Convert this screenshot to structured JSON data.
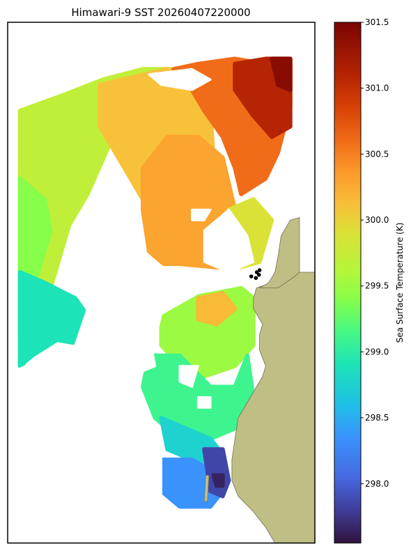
{
  "chart_data": {
    "type": "heatmap",
    "title": "Himawari-9 SST 20260407220000",
    "colorbar": {
      "label": "Sea Surface Temperature (K)",
      "range": [
        297.55,
        301.5
      ],
      "ticks": [
        "298.0",
        "298.5",
        "299.0",
        "299.5",
        "300.0",
        "300.5",
        "301.0",
        "301.5"
      ],
      "colormap": "turbo",
      "stops": [
        {
          "v": 297.55,
          "c": "#30123b"
        },
        {
          "v": 297.8,
          "c": "#3f3d9a"
        },
        {
          "v": 298.05,
          "c": "#4669e0"
        },
        {
          "v": 298.35,
          "c": "#3a92fd"
        },
        {
          "v": 298.6,
          "c": "#1fc0e6"
        },
        {
          "v": 298.9,
          "c": "#1ce3b8"
        },
        {
          "v": 299.15,
          "c": "#46f884"
        },
        {
          "v": 299.4,
          "c": "#86fe4a"
        },
        {
          "v": 299.6,
          "c": "#b2f63a"
        },
        {
          "v": 299.9,
          "c": "#dae237"
        },
        {
          "v": 300.1,
          "c": "#f7c23a"
        },
        {
          "v": 300.35,
          "c": "#fc9c2c"
        },
        {
          "v": 300.6,
          "c": "#f06c18"
        },
        {
          "v": 300.85,
          "c": "#d84207"
        },
        {
          "v": 301.1,
          "c": "#b52403"
        },
        {
          "v": 301.5,
          "c": "#7a0403"
        }
      ]
    },
    "land_color": "#bfbe84",
    "regions": [
      {
        "v": 299.7,
        "pts": [
          [
            0.04,
            0.17
          ],
          [
            0.18,
            0.14
          ],
          [
            0.31,
            0.11
          ],
          [
            0.44,
            0.09
          ],
          [
            0.54,
            0.09
          ],
          [
            0.52,
            0.11
          ],
          [
            0.44,
            0.13
          ],
          [
            0.38,
            0.17
          ],
          [
            0.32,
            0.25
          ],
          [
            0.26,
            0.33
          ],
          [
            0.2,
            0.39
          ],
          [
            0.16,
            0.47
          ],
          [
            0.12,
            0.55
          ],
          [
            0.05,
            0.66
          ],
          [
            0.04,
            0.6
          ]
        ]
      },
      {
        "v": 299.4,
        "pts": [
          [
            0.04,
            0.3
          ],
          [
            0.12,
            0.34
          ],
          [
            0.14,
            0.4
          ],
          [
            0.1,
            0.48
          ],
          [
            0.04,
            0.55
          ]
        ]
      },
      {
        "v": 298.9,
        "pts": [
          [
            0.04,
            0.48
          ],
          [
            0.12,
            0.5
          ],
          [
            0.22,
            0.53
          ],
          [
            0.28,
            0.58
          ],
          [
            0.26,
            0.62
          ],
          [
            0.16,
            0.61
          ],
          [
            0.08,
            0.64
          ],
          [
            0.04,
            0.66
          ]
        ]
      },
      {
        "v": 300.1,
        "pts": [
          [
            0.3,
            0.12
          ],
          [
            0.52,
            0.09
          ],
          [
            0.62,
            0.11
          ],
          [
            0.66,
            0.17
          ],
          [
            0.67,
            0.26
          ],
          [
            0.6,
            0.3
          ],
          [
            0.5,
            0.36
          ],
          [
            0.44,
            0.34
          ],
          [
            0.36,
            0.26
          ],
          [
            0.3,
            0.2
          ]
        ]
      },
      {
        "v": 300.3,
        "pts": [
          [
            0.44,
            0.28
          ],
          [
            0.52,
            0.22
          ],
          [
            0.62,
            0.22
          ],
          [
            0.7,
            0.26
          ],
          [
            0.74,
            0.36
          ],
          [
            0.78,
            0.44
          ],
          [
            0.72,
            0.47
          ],
          [
            0.62,
            0.49
          ],
          [
            0.54,
            0.48
          ],
          [
            0.46,
            0.44
          ],
          [
            0.44,
            0.36
          ]
        ]
      },
      {
        "v": 300.6,
        "pts": [
          [
            0.54,
            0.09
          ],
          [
            0.62,
            0.08
          ],
          [
            0.74,
            0.07
          ],
          [
            0.84,
            0.08
          ],
          [
            0.92,
            0.08
          ],
          [
            0.92,
            0.16
          ],
          [
            0.88,
            0.25
          ],
          [
            0.84,
            0.3
          ],
          [
            0.76,
            0.33
          ],
          [
            0.74,
            0.28
          ],
          [
            0.7,
            0.22
          ],
          [
            0.64,
            0.17
          ],
          [
            0.6,
            0.13
          ]
        ]
      },
      {
        "v": 301.1,
        "pts": [
          [
            0.74,
            0.08
          ],
          [
            0.84,
            0.07
          ],
          [
            0.92,
            0.07
          ],
          [
            0.92,
            0.2
          ],
          [
            0.86,
            0.22
          ],
          [
            0.8,
            0.18
          ],
          [
            0.74,
            0.13
          ]
        ]
      },
      {
        "v": 301.4,
        "pts": [
          [
            0.86,
            0.07
          ],
          [
            0.92,
            0.07
          ],
          [
            0.92,
            0.13
          ],
          [
            0.88,
            0.12
          ]
        ]
      },
      {
        "v": 299.9,
        "pts": [
          [
            0.72,
            0.36
          ],
          [
            0.8,
            0.34
          ],
          [
            0.86,
            0.38
          ],
          [
            0.82,
            0.46
          ],
          [
            0.76,
            0.47
          ],
          [
            0.72,
            0.43
          ]
        ]
      },
      {
        "v": 299.5,
        "pts": [
          [
            0.5,
            0.56
          ],
          [
            0.62,
            0.52
          ],
          [
            0.74,
            0.5
          ],
          [
            0.8,
            0.53
          ],
          [
            0.8,
            0.62
          ],
          [
            0.74,
            0.66
          ],
          [
            0.64,
            0.68
          ],
          [
            0.56,
            0.66
          ],
          [
            0.5,
            0.62
          ]
        ]
      },
      {
        "v": 299.1,
        "pts": [
          [
            0.46,
            0.64
          ],
          [
            0.56,
            0.64
          ],
          [
            0.66,
            0.7
          ],
          [
            0.74,
            0.7
          ],
          [
            0.78,
            0.64
          ],
          [
            0.8,
            0.72
          ],
          [
            0.74,
            0.78
          ],
          [
            0.66,
            0.8
          ],
          [
            0.56,
            0.8
          ],
          [
            0.48,
            0.76
          ],
          [
            0.44,
            0.7
          ]
        ]
      },
      {
        "v": 300.15,
        "pts": [
          [
            0.62,
            0.53
          ],
          [
            0.7,
            0.52
          ],
          [
            0.74,
            0.55
          ],
          [
            0.68,
            0.58
          ],
          [
            0.62,
            0.57
          ]
        ]
      },
      {
        "v": 298.75,
        "pts": [
          [
            0.5,
            0.76
          ],
          [
            0.58,
            0.78
          ],
          [
            0.66,
            0.8
          ],
          [
            0.7,
            0.83
          ],
          [
            0.66,
            0.86
          ],
          [
            0.6,
            0.84
          ],
          [
            0.52,
            0.82
          ]
        ]
      },
      {
        "v": 298.35,
        "pts": [
          [
            0.5,
            0.84
          ],
          [
            0.6,
            0.84
          ],
          [
            0.66,
            0.86
          ],
          [
            0.7,
            0.9
          ],
          [
            0.66,
            0.93
          ],
          [
            0.56,
            0.93
          ],
          [
            0.5,
            0.9
          ]
        ]
      },
      {
        "v": 297.85,
        "pts": [
          [
            0.64,
            0.82
          ],
          [
            0.7,
            0.82
          ],
          [
            0.72,
            0.88
          ],
          [
            0.7,
            0.91
          ],
          [
            0.66,
            0.9
          ]
        ]
      },
      {
        "v": 297.65,
        "pts": [
          [
            0.67,
            0.87
          ],
          [
            0.7,
            0.87
          ],
          [
            0.7,
            0.89
          ],
          [
            0.68,
            0.89
          ]
        ]
      }
    ],
    "gaps": [
      [
        [
          0.3,
          0.3
        ],
        [
          0.34,
          0.3
        ],
        [
          0.36,
          0.32
        ],
        [
          0.32,
          0.33
        ],
        [
          0.3,
          0.32
        ]
      ],
      [
        [
          0.46,
          0.1
        ],
        [
          0.6,
          0.09
        ],
        [
          0.66,
          0.11
        ],
        [
          0.6,
          0.13
        ],
        [
          0.5,
          0.12
        ]
      ],
      [
        [
          0.6,
          0.36
        ],
        [
          0.66,
          0.36
        ],
        [
          0.64,
          0.38
        ],
        [
          0.6,
          0.38
        ]
      ],
      [
        [
          0.04,
          0.08
        ],
        [
          0.56,
          0.07
        ],
        [
          0.5,
          0.08
        ],
        [
          0.2,
          0.1
        ],
        [
          0.04,
          0.15
        ]
      ],
      [
        [
          0.26,
          0.47
        ],
        [
          0.56,
          0.47
        ],
        [
          0.74,
          0.48
        ],
        [
          0.8,
          0.5
        ],
        [
          0.62,
          0.52
        ],
        [
          0.5,
          0.56
        ],
        [
          0.46,
          0.66
        ],
        [
          0.34,
          0.64
        ],
        [
          0.22,
          0.62
        ],
        [
          0.26,
          0.55
        ],
        [
          0.3,
          0.5
        ]
      ],
      [
        [
          0.64,
          0.4
        ],
        [
          0.72,
          0.36
        ],
        [
          0.78,
          0.41
        ],
        [
          0.8,
          0.46
        ],
        [
          0.72,
          0.48
        ],
        [
          0.64,
          0.46
        ]
      ],
      [
        [
          0.06,
          0.66
        ],
        [
          0.2,
          0.62
        ],
        [
          0.3,
          0.66
        ],
        [
          0.4,
          0.7
        ],
        [
          0.46,
          0.76
        ],
        [
          0.5,
          0.82
        ],
        [
          0.5,
          0.93
        ],
        [
          0.02,
          0.93
        ],
        [
          0.02,
          0.67
        ]
      ],
      [
        [
          0.36,
          0.6
        ],
        [
          0.46,
          0.6
        ],
        [
          0.48,
          0.66
        ],
        [
          0.4,
          0.68
        ],
        [
          0.34,
          0.66
        ]
      ],
      [
        [
          0.62,
          0.72
        ],
        [
          0.66,
          0.72
        ],
        [
          0.66,
          0.74
        ],
        [
          0.62,
          0.74
        ]
      ],
      [
        [
          0.56,
          0.66
        ],
        [
          0.62,
          0.66
        ],
        [
          0.6,
          0.7
        ],
        [
          0.56,
          0.69
        ]
      ]
    ],
    "land": [
      [
        0.87,
        1.0
      ],
      [
        0.84,
        0.97
      ],
      [
        0.8,
        0.94
      ],
      [
        0.75,
        0.91
      ],
      [
        0.73,
        0.88
      ],
      [
        0.73,
        0.84
      ],
      [
        0.74,
        0.8
      ],
      [
        0.75,
        0.76
      ],
      [
        0.78,
        0.73
      ],
      [
        0.8,
        0.71
      ],
      [
        0.83,
        0.68
      ],
      [
        0.84,
        0.66
      ],
      [
        0.82,
        0.63
      ],
      [
        0.82,
        0.6
      ],
      [
        0.83,
        0.58
      ],
      [
        0.8,
        0.55
      ],
      [
        0.8,
        0.53
      ],
      [
        0.81,
        0.51
      ],
      [
        0.86,
        0.5
      ],
      [
        0.89,
        0.5
      ],
      [
        0.93,
        0.49
      ],
      [
        0.95,
        0.48
      ],
      [
        0.97,
        0.48
      ],
      [
        1.0,
        0.48
      ],
      [
        1.0,
        1.0
      ]
    ],
    "land_upper": [
      [
        0.82,
        0.51
      ],
      [
        0.85,
        0.5
      ],
      [
        0.87,
        0.48
      ],
      [
        0.88,
        0.45
      ],
      [
        0.89,
        0.41
      ],
      [
        0.92,
        0.38
      ],
      [
        0.95,
        0.375
      ],
      [
        0.95,
        0.48
      ],
      [
        0.93,
        0.49
      ],
      [
        0.88,
        0.51
      ]
    ],
    "inlet": [
      [
        0.645,
        0.87
      ],
      [
        0.655,
        0.87
      ],
      [
        0.65,
        0.92
      ],
      [
        0.64,
        0.92
      ]
    ],
    "points": [
      [
        0.793,
        0.488
      ],
      [
        0.808,
        0.491
      ],
      [
        0.818,
        0.485
      ],
      [
        0.811,
        0.48
      ],
      [
        0.82,
        0.476
      ]
    ]
  }
}
